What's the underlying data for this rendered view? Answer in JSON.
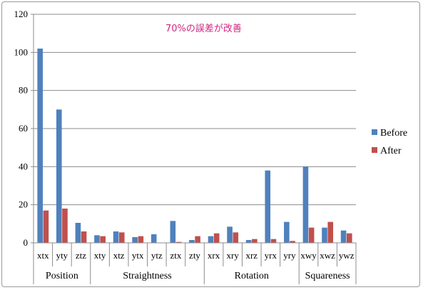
{
  "chart_data": {
    "type": "bar",
    "title": "",
    "annotation": "70%の誤差が改善",
    "xlabel": "",
    "ylabel": "",
    "ylim": [
      0,
      120
    ],
    "yticks": [
      "0",
      "20",
      "40",
      "60",
      "80",
      "100",
      "120"
    ],
    "grid": true,
    "legend_position": "right",
    "categories": [
      "xtx",
      "yty",
      "ztz",
      "xty",
      "xtz",
      "ytx",
      "ytz",
      "ztx",
      "zty",
      "xrx",
      "xry",
      "xrz",
      "yrx",
      "yry",
      "xwy",
      "xwz",
      "ywz"
    ],
    "groups": [
      {
        "label": "Position",
        "count": 3
      },
      {
        "label": "Straightness",
        "count": 6
      },
      {
        "label": "Rotation",
        "count": 5
      },
      {
        "label": "Squareness",
        "count": 3
      }
    ],
    "series": [
      {
        "name": "Before",
        "color": "#4f81bd",
        "values": [
          102,
          70,
          10.5,
          4,
          6,
          3,
          4.5,
          11.5,
          1.5,
          3.5,
          8.5,
          1.5,
          38,
          11,
          40,
          8,
          6.5
        ]
      },
      {
        "name": "After",
        "color": "#c0504d",
        "values": [
          17,
          18,
          6,
          3.5,
          5.5,
          3.5,
          0,
          0.5,
          3.5,
          5,
          5.5,
          2,
          2,
          1,
          8,
          11,
          5
        ]
      }
    ],
    "annotation_color": "#d02580"
  }
}
